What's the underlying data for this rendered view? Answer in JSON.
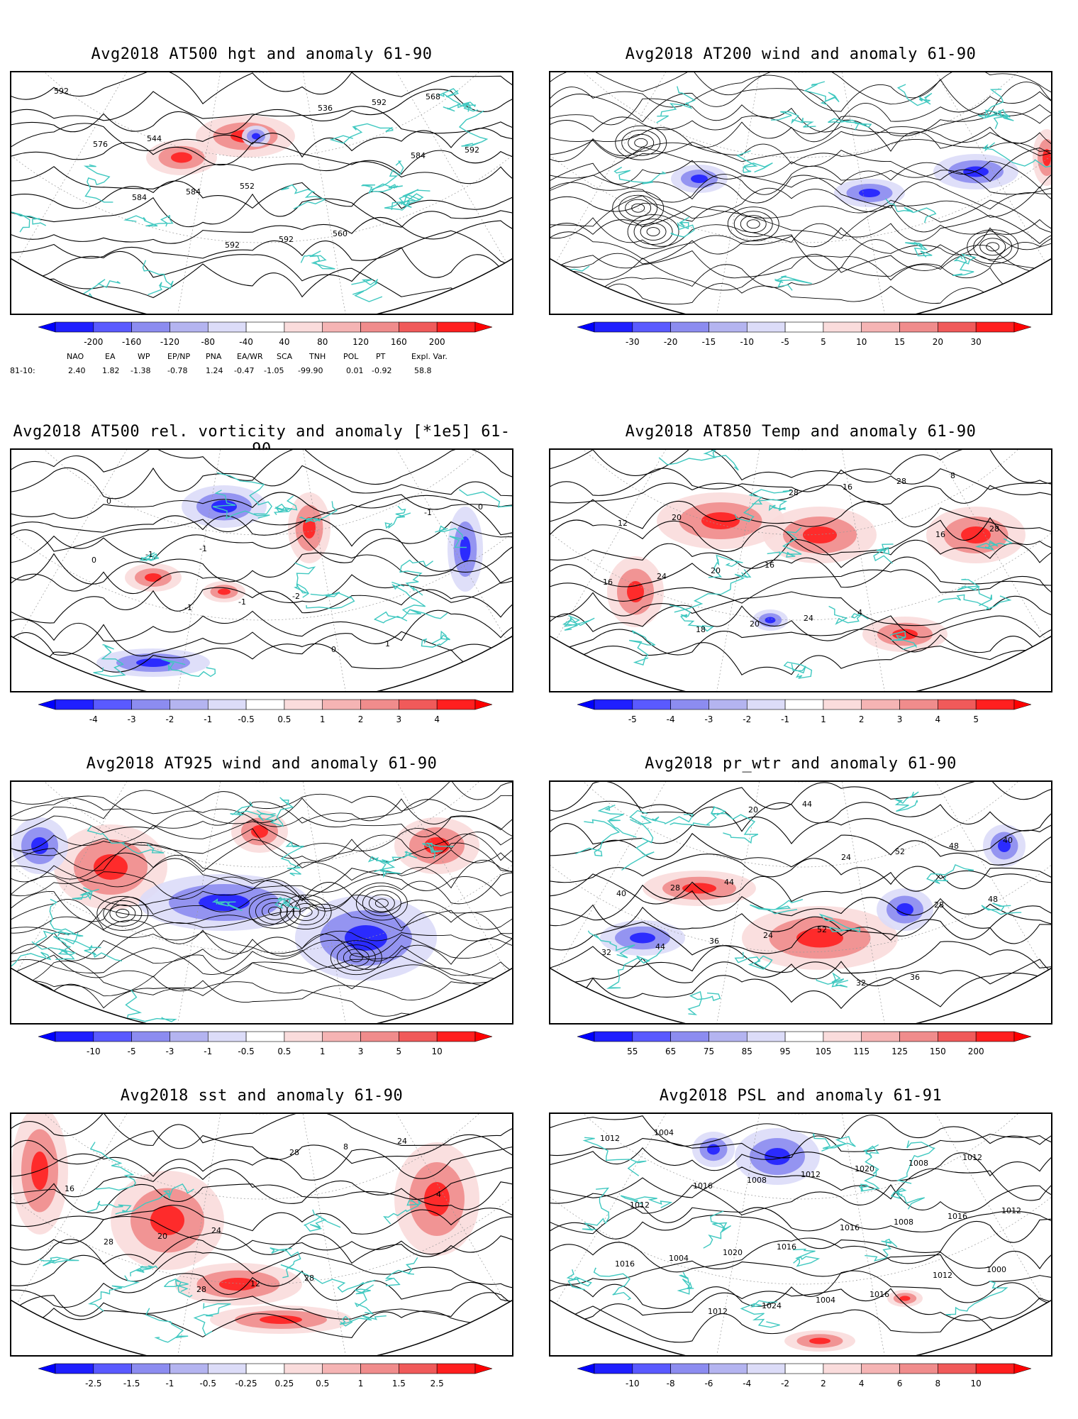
{
  "panels": [
    {
      "title": "Avg2018 AT500 hgt and anomaly 61-90",
      "levels": [
        "-200",
        "-160",
        "-120",
        "-80",
        "-40",
        "40",
        "80",
        "120",
        "160",
        "200"
      ],
      "contour_labels": [
        "592",
        "544",
        "552",
        "560",
        "568",
        "576",
        "584",
        "592",
        "592",
        "592",
        "584",
        "592",
        "536",
        "584"
      ]
    },
    {
      "title": "Avg2018 AT200 wind and anomaly 61-90",
      "levels": [
        "-30",
        "-20",
        "-15",
        "-10",
        "-5",
        "5",
        "10",
        "15",
        "20",
        "30"
      ],
      "contour_labels": []
    },
    {
      "title": "Avg2018 AT500 rel. vorticity and anomaly [*1e5] 61-90",
      "levels": [
        "-4",
        "-3",
        "-2",
        "-1",
        "-0.5",
        "0.5",
        "1",
        "2",
        "3",
        "4"
      ],
      "contour_labels": [
        "0",
        "-1",
        "-2",
        "1",
        "0",
        "-1",
        "-1",
        "0",
        "-1",
        "0",
        "-1"
      ]
    },
    {
      "title": "Avg2018 AT850 Temp and anomaly 61-90",
      "levels": [
        "-5",
        "-4",
        "-3",
        "-2",
        "-1",
        "1",
        "2",
        "3",
        "4",
        "5"
      ],
      "contour_labels": [
        "20",
        "16",
        "4",
        "8",
        "12",
        "20",
        "24",
        "28",
        "28",
        "24",
        "20",
        "16",
        "16",
        "16",
        "18",
        "28"
      ]
    },
    {
      "title": "Avg2018 AT925 wind and anomaly 61-90",
      "levels": [
        "-10",
        "-5",
        "-3",
        "-1",
        "-0.5",
        "0.5",
        "1",
        "3",
        "5",
        "10"
      ],
      "contour_labels": []
    },
    {
      "title": "Avg2018 pr_wtr and anomaly 61-90",
      "levels": [
        "55",
        "65",
        "75",
        "85",
        "95",
        "105",
        "115",
        "125",
        "150",
        "200"
      ],
      "contour_labels": [
        "44",
        "52",
        "36",
        "40",
        "28",
        "24",
        "32",
        "48",
        "40",
        "36",
        "44",
        "52",
        "48",
        "44",
        "20",
        "24",
        "28",
        "32"
      ]
    },
    {
      "title": "Avg2018 sst and anomaly 61-90",
      "levels": [
        "-2.5",
        "-1.5",
        "-1",
        "-0.5",
        "-0.25",
        "0.25",
        "0.5",
        "1",
        "1.5",
        "2.5"
      ],
      "contour_labels": [
        "24",
        "28",
        "24",
        "16",
        "20",
        "12",
        "8",
        "4",
        "28",
        "28",
        "28"
      ]
    },
    {
      "title": "Avg2018 PSL and anomaly 61-91",
      "levels": [
        "-10",
        "-8",
        "-6",
        "-4",
        "-2",
        "2",
        "4",
        "6",
        "8",
        "10"
      ],
      "contour_labels": [
        "1016",
        "1016",
        "1012",
        "1012",
        "1020",
        "1004",
        "1008",
        "1012",
        "1004",
        "1024",
        "1020",
        "1016",
        "1016",
        "1012",
        "1012",
        "1008",
        "1000",
        "1004",
        "1008",
        "1016",
        "1012",
        "1012",
        "1016"
      ]
    }
  ],
  "indices": {
    "headers": [
      "NAO",
      "EA",
      "WP",
      "EP/NP",
      "PNA",
      "EA/WR",
      "SCA",
      "TNH",
      "POL",
      "PT",
      "Expl. Var."
    ],
    "row_label": "81-10:",
    "values": [
      "2.40",
      "1.82",
      "-1.38",
      "-0.78",
      "1.24",
      "-0.47",
      "-1.05",
      "-99.90",
      "0.01",
      "-0.92",
      "58.8"
    ]
  },
  "colors": {
    "coast": "#3fc8c0",
    "contour": "#000000",
    "neg": [
      "#1f1fff",
      "#5a5aff",
      "#8c8cf0",
      "#b4b4f0",
      "#dcdcf8"
    ],
    "pos": [
      "#fadcdc",
      "#f5b4b4",
      "#f08c8c",
      "#f05a5a",
      "#ff1f1f"
    ]
  }
}
